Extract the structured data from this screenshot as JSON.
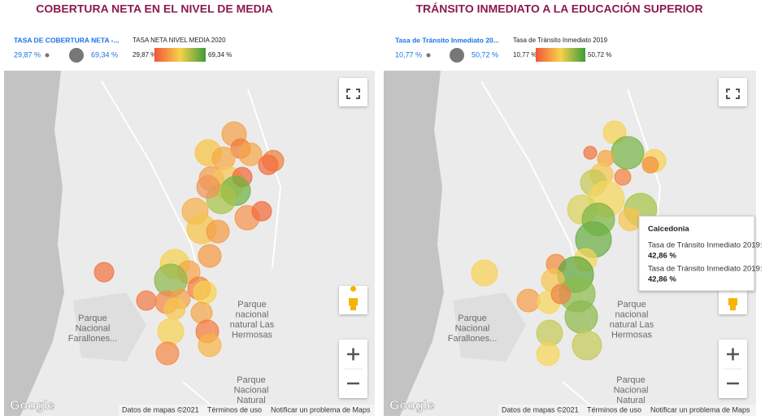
{
  "panels": [
    {
      "title": "COBERTURA NETA EN EL NIVEL DE MEDIA",
      "size_legend": {
        "label": "TASA DE COBERTURA NETA -...",
        "min": "29,87 %",
        "max": "69,34 %"
      },
      "color_legend": {
        "label": "TASA NETA NIVEL MEDIA 2020",
        "min": "29,87 %",
        "max": "69,34 %"
      },
      "map_labels": [
        [
          "Parque",
          "Nacional",
          "Farallones..."
        ],
        [
          "Parque",
          "nacional",
          "natural Las",
          "Hermosas"
        ],
        [
          "Parque",
          "Nacional",
          "Natural"
        ]
      ],
      "logo": "Google",
      "footer": {
        "data": "Datos de mapas ©2021",
        "terms": "Términos de uso",
        "report": "Notificar un problema de Maps"
      }
    },
    {
      "title": "TRÁNSITO INMEDIATO A LA EDUCACIÓN SUPERIOR",
      "size_legend": {
        "label": "Tasa de Tránsito Inmediato 20...",
        "min": "10,77 %",
        "max": "50,72 %"
      },
      "color_legend": {
        "label": "Tasa de Tránsito Inmediato 2019",
        "min": "10,77 %",
        "max": "50,72 %"
      },
      "map_labels": [
        [
          "Parque",
          "Nacional",
          "Farallones..."
        ],
        [
          "Parque",
          "nacional",
          "natural Las",
          "Hermosas"
        ],
        [
          "Parque",
          "Nacional",
          "Natural"
        ]
      ],
      "logo": "Google",
      "footer": {
        "data": "Datos de mapas ©2021",
        "terms": "Términos de uso",
        "report": "Notificar un problema de Maps"
      },
      "tooltip": {
        "title": "Caicedonia",
        "rows": [
          {
            "label": "Tasa de Tránsito Inmediato 2019:",
            "value": "42,86 %"
          },
          {
            "label": "Tasa de Tránsito Inmediato 2019:",
            "value": "42,86 %"
          }
        ]
      }
    }
  ]
}
